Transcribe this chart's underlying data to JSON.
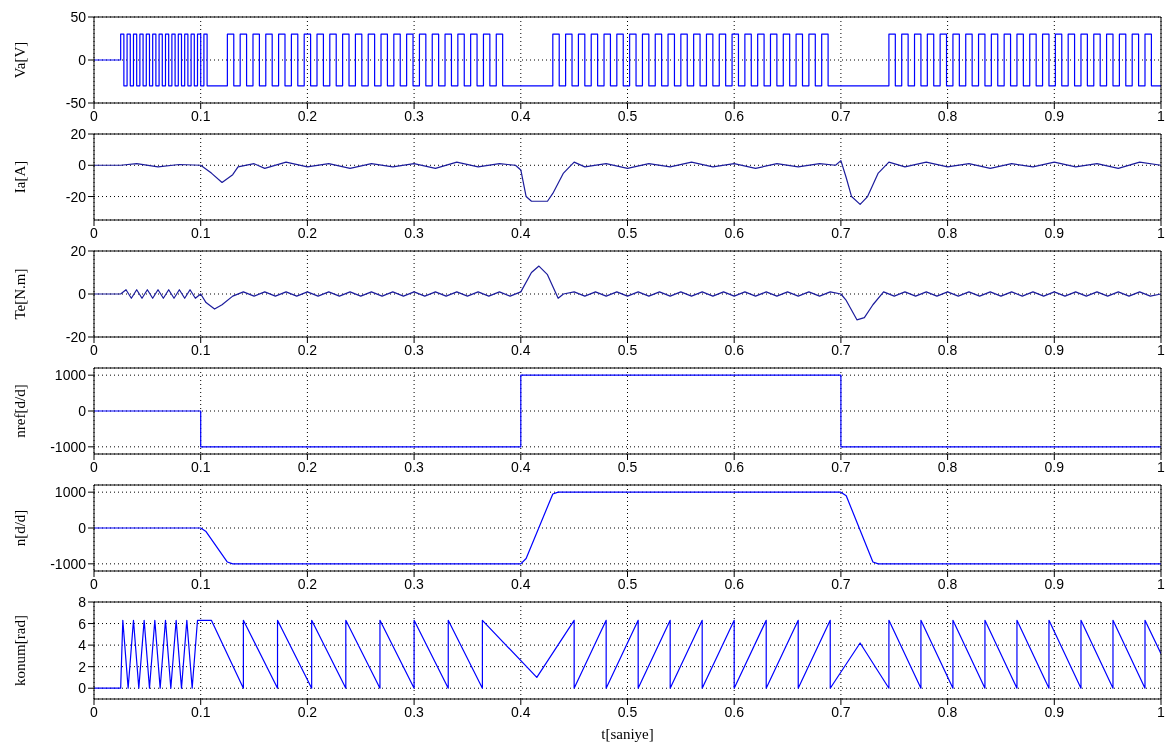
{
  "chart_data": [
    {
      "type": "step",
      "ylabel": "Va[V]",
      "xlim": [
        0,
        1
      ],
      "xticks": [
        0,
        0.1,
        0.2,
        0.3,
        0.4,
        0.5,
        0.6,
        0.7,
        0.8,
        0.9,
        1
      ],
      "ylim": [
        -50,
        50
      ],
      "yticks": [
        -50,
        0,
        50
      ],
      "grid": true,
      "series": [
        {
          "color": "#0000ff",
          "x": [
            0,
            0.025,
            0.028,
            0.031,
            0.034,
            0.037,
            0.04,
            0.043,
            0.046,
            0.049,
            0.052,
            0.055,
            0.058,
            0.061,
            0.064,
            0.067,
            0.07,
            0.073,
            0.076,
            0.079,
            0.082,
            0.085,
            0.088,
            0.091,
            0.094,
            0.097,
            0.1,
            0.103,
            0.106,
            0.125,
            0.131,
            0.137,
            0.143,
            0.149,
            0.155,
            0.161,
            0.167,
            0.173,
            0.179,
            0.185,
            0.191,
            0.197,
            0.203,
            0.209,
            0.215,
            0.221,
            0.227,
            0.233,
            0.239,
            0.245,
            0.251,
            0.257,
            0.263,
            0.269,
            0.275,
            0.281,
            0.287,
            0.293,
            0.299,
            0.305,
            0.311,
            0.317,
            0.323,
            0.329,
            0.335,
            0.341,
            0.347,
            0.353,
            0.359,
            0.365,
            0.371,
            0.377,
            0.383,
            0.43,
            0.436,
            0.442,
            0.448,
            0.454,
            0.46,
            0.466,
            0.472,
            0.478,
            0.484,
            0.49,
            0.496,
            0.502,
            0.508,
            0.514,
            0.52,
            0.526,
            0.532,
            0.538,
            0.544,
            0.55,
            0.556,
            0.562,
            0.568,
            0.574,
            0.58,
            0.586,
            0.592,
            0.598,
            0.604,
            0.61,
            0.616,
            0.622,
            0.628,
            0.634,
            0.64,
            0.646,
            0.652,
            0.658,
            0.664,
            0.67,
            0.676,
            0.682,
            0.688,
            0.745,
            0.751,
            0.757,
            0.763,
            0.769,
            0.775,
            0.781,
            0.787,
            0.793,
            0.799,
            0.805,
            0.811,
            0.817,
            0.823,
            0.829,
            0.835,
            0.841,
            0.847,
            0.853,
            0.859,
            0.865,
            0.871,
            0.877,
            0.883,
            0.889,
            0.895,
            0.901,
            0.907,
            0.913,
            0.919,
            0.925,
            0.931,
            0.937,
            0.943,
            0.949,
            0.955,
            0.961,
            0.967,
            0.973,
            0.979,
            0.985,
            0.991,
            1
          ],
          "values": [
            0,
            30,
            -30,
            30,
            -30,
            30,
            -30,
            30,
            -30,
            30,
            -30,
            30,
            -30,
            30,
            -30,
            30,
            -30,
            30,
            -30,
            30,
            -30,
            30,
            -30,
            30,
            -30,
            30,
            -30,
            30,
            -30,
            30,
            -30,
            30,
            -30,
            30,
            -30,
            30,
            -30,
            30,
            -30,
            30,
            -30,
            30,
            -30,
            30,
            -30,
            30,
            -30,
            30,
            -30,
            30,
            -30,
            30,
            -30,
            30,
            -30,
            30,
            -30,
            30,
            -30,
            30,
            -30,
            30,
            -30,
            30,
            -30,
            30,
            -30,
            30,
            -30,
            30,
            -30,
            30,
            -30,
            30,
            -30,
            30,
            -30,
            30,
            -30,
            30,
            -30,
            30,
            -30,
            30,
            -30,
            30,
            -30,
            30,
            -30,
            30,
            -30,
            30,
            -30,
            30,
            -30,
            30,
            -30,
            30,
            -30,
            30,
            -30,
            30,
            -30,
            30,
            -30,
            30,
            -30,
            30,
            -30,
            30,
            -30,
            30,
            -30,
            30,
            -30,
            30,
            -30,
            30,
            -30,
            30,
            -30,
            30,
            -30,
            30,
            -30,
            30,
            -30,
            30,
            -30,
            30,
            -30,
            30,
            -30,
            30,
            -30,
            30,
            -30,
            30,
            -30,
            30,
            -30,
            30,
            -30,
            30,
            -30,
            30,
            -30,
            30,
            -30,
            30,
            -30,
            30,
            -30,
            30,
            -30,
            30,
            -30,
            30,
            -30,
            -30
          ]
        }
      ]
    },
    {
      "type": "line",
      "ylabel": "Ia[A]",
      "xlim": [
        0,
        1
      ],
      "xticks": [
        0,
        0.1,
        0.2,
        0.3,
        0.4,
        0.5,
        0.6,
        0.7,
        0.8,
        0.9,
        1
      ],
      "ylim": [
        -35,
        20
      ],
      "yticks": [
        -20,
        0,
        20
      ],
      "grid": true,
      "series": [
        {
          "color": "#1c1c9c",
          "x": [
            0,
            0.025,
            0.04,
            0.06,
            0.08,
            0.1,
            0.11,
            0.12,
            0.13,
            0.135,
            0.15,
            0.16,
            0.18,
            0.2,
            0.22,
            0.24,
            0.26,
            0.28,
            0.3,
            0.32,
            0.34,
            0.36,
            0.38,
            0.395,
            0.4,
            0.405,
            0.41,
            0.425,
            0.43,
            0.44,
            0.45,
            0.46,
            0.48,
            0.5,
            0.52,
            0.54,
            0.56,
            0.58,
            0.6,
            0.62,
            0.64,
            0.66,
            0.68,
            0.695,
            0.7,
            0.705,
            0.71,
            0.718,
            0.725,
            0.735,
            0.745,
            0.76,
            0.78,
            0.8,
            0.82,
            0.84,
            0.86,
            0.88,
            0.9,
            0.92,
            0.94,
            0.96,
            0.98,
            1
          ],
          "values": [
            0,
            0,
            1,
            -1,
            0.5,
            0,
            -5,
            -11,
            -6,
            -1,
            1,
            -2,
            2,
            -1,
            1,
            -2,
            1,
            -1,
            1,
            -2,
            2,
            -1,
            1,
            0,
            -3,
            -20,
            -23,
            -23,
            -18,
            -5,
            2,
            -1,
            1,
            -2,
            1,
            -1,
            2,
            -1,
            1,
            -2,
            1,
            -1,
            1,
            0,
            3,
            -8,
            -20,
            -25,
            -20,
            -5,
            2,
            -1,
            2,
            -1,
            1,
            -2,
            1,
            -1,
            2,
            -1,
            1,
            -2,
            2,
            0
          ]
        }
      ]
    },
    {
      "type": "line",
      "ylabel": "Te[N.m]",
      "xlim": [
        0,
        1
      ],
      "xticks": [
        0,
        0.1,
        0.2,
        0.3,
        0.4,
        0.5,
        0.6,
        0.7,
        0.8,
        0.9,
        1
      ],
      "ylim": [
        -20,
        20
      ],
      "yticks": [
        -20,
        0,
        20
      ],
      "grid": true,
      "series": [
        {
          "color": "#1c1c9c",
          "x": [
            0,
            0.025,
            0.03,
            0.035,
            0.04,
            0.045,
            0.05,
            0.055,
            0.06,
            0.065,
            0.07,
            0.075,
            0.08,
            0.085,
            0.09,
            0.095,
            0.1,
            0.105,
            0.113,
            0.12,
            0.13,
            0.14,
            0.15,
            0.16,
            0.17,
            0.18,
            0.19,
            0.2,
            0.21,
            0.22,
            0.23,
            0.24,
            0.25,
            0.26,
            0.27,
            0.28,
            0.29,
            0.3,
            0.31,
            0.32,
            0.33,
            0.34,
            0.35,
            0.36,
            0.37,
            0.38,
            0.39,
            0.4,
            0.41,
            0.417,
            0.425,
            0.435,
            0.44,
            0.45,
            0.46,
            0.47,
            0.48,
            0.49,
            0.5,
            0.51,
            0.52,
            0.53,
            0.54,
            0.55,
            0.56,
            0.57,
            0.58,
            0.59,
            0.6,
            0.61,
            0.62,
            0.63,
            0.64,
            0.65,
            0.66,
            0.67,
            0.68,
            0.69,
            0.7,
            0.705,
            0.715,
            0.722,
            0.73,
            0.74,
            0.75,
            0.76,
            0.77,
            0.78,
            0.79,
            0.8,
            0.81,
            0.82,
            0.83,
            0.84,
            0.85,
            0.86,
            0.87,
            0.88,
            0.89,
            0.9,
            0.91,
            0.92,
            0.93,
            0.94,
            0.95,
            0.96,
            0.97,
            0.98,
            0.99,
            1
          ],
          "values": [
            0,
            0,
            2,
            -2,
            2,
            -2,
            2,
            -2,
            2,
            -2,
            2,
            -2,
            2,
            -2,
            2,
            -2,
            0,
            -4,
            -7,
            -5,
            -1,
            1,
            -1,
            1,
            -1,
            1,
            -1,
            1,
            -1,
            1,
            -1,
            1,
            -1,
            1,
            -1,
            1,
            -1,
            1,
            -1,
            1,
            -1,
            1,
            -1,
            1,
            -1,
            1,
            -1,
            1,
            10,
            13,
            9,
            -2,
            0,
            1,
            -1,
            1,
            -1,
            1,
            -1,
            1,
            -1,
            1,
            -1,
            1,
            -1,
            1,
            -1,
            1,
            -1,
            1,
            -1,
            1,
            -1,
            1,
            -1,
            1,
            -1,
            1,
            0,
            -3,
            -12,
            -11,
            -5,
            1,
            -1,
            1,
            -1,
            1,
            -1,
            1,
            -1,
            1,
            -1,
            1,
            -1,
            1,
            -1,
            1,
            -1,
            1,
            -1,
            1,
            -1,
            1,
            -1,
            1,
            -1,
            1,
            -1,
            0
          ]
        }
      ]
    },
    {
      "type": "step",
      "ylabel": "nref[d/d]",
      "xlim": [
        0,
        1
      ],
      "xticks": [
        0,
        0.1,
        0.2,
        0.3,
        0.4,
        0.5,
        0.6,
        0.7,
        0.8,
        0.9,
        1
      ],
      "ylim": [
        -1200,
        1200
      ],
      "yticks": [
        -1000,
        0,
        1000
      ],
      "grid": true,
      "series": [
        {
          "color": "#0000ff",
          "x": [
            0,
            0.1,
            0.4,
            0.7,
            1
          ],
          "values": [
            0,
            -1000,
            1000,
            -1000,
            -1000
          ]
        }
      ]
    },
    {
      "type": "line",
      "ylabel": "n[d/d]",
      "xlim": [
        0,
        1
      ],
      "xticks": [
        0,
        0.1,
        0.2,
        0.3,
        0.4,
        0.5,
        0.6,
        0.7,
        0.8,
        0.9,
        1
      ],
      "ylim": [
        -1200,
        1200
      ],
      "yticks": [
        -1000,
        0,
        1000
      ],
      "grid": true,
      "series": [
        {
          "color": "#0000ff",
          "x": [
            0,
            0.1,
            0.105,
            0.125,
            0.13,
            0.4,
            0.405,
            0.43,
            0.435,
            0.7,
            0.705,
            0.73,
            0.735,
            1
          ],
          "values": [
            0,
            0,
            -100,
            -950,
            -1000,
            -1000,
            -850,
            950,
            1000,
            1000,
            900,
            -950,
            -1000,
            -1000
          ]
        }
      ]
    },
    {
      "type": "line",
      "ylabel": "konum[rad]",
      "xlabel": "t[saniye]",
      "xlim": [
        0,
        1
      ],
      "xticks": [
        0,
        0.1,
        0.2,
        0.3,
        0.4,
        0.5,
        0.6,
        0.7,
        0.8,
        0.9,
        1
      ],
      "ylim": [
        -1,
        8
      ],
      "yticks": [
        0,
        2,
        4,
        6,
        8
      ],
      "grid": true,
      "series": [
        {
          "color": "#0000ff",
          "x": [
            0,
            0.025,
            0.027,
            0.032,
            0.037,
            0.042,
            0.047,
            0.052,
            0.057,
            0.062,
            0.067,
            0.072,
            0.077,
            0.082,
            0.087,
            0.092,
            0.097,
            0.11,
            0.14,
            0.14,
            0.172,
            0.172,
            0.204,
            0.204,
            0.236,
            0.236,
            0.268,
            0.268,
            0.3,
            0.3,
            0.332,
            0.332,
            0.364,
            0.364,
            0.415,
            0.45,
            0.45,
            0.48,
            0.48,
            0.51,
            0.51,
            0.54,
            0.54,
            0.57,
            0.57,
            0.6,
            0.6,
            0.63,
            0.63,
            0.66,
            0.66,
            0.69,
            0.69,
            0.718,
            0.745,
            0.745,
            0.775,
            0.775,
            0.805,
            0.805,
            0.835,
            0.835,
            0.865,
            0.865,
            0.895,
            0.895,
            0.925,
            0.925,
            0.955,
            0.955,
            0.985,
            0.985,
            1
          ],
          "values": [
            0,
            0,
            6.3,
            0,
            6.3,
            0,
            6.3,
            0,
            6.3,
            0,
            6.3,
            0,
            6.3,
            0,
            6.3,
            0,
            6.3,
            6.3,
            0,
            6.3,
            0,
            6.3,
            0,
            6.3,
            0,
            6.3,
            0,
            6.3,
            0,
            6.3,
            0,
            6.3,
            0,
            6.3,
            1,
            6.3,
            0,
            6.3,
            0,
            6.3,
            0,
            6.3,
            0,
            6.3,
            0,
            6.3,
            0,
            6.3,
            0,
            6.3,
            0,
            6.3,
            0,
            4.2,
            0,
            6.3,
            0,
            6.3,
            0,
            6.3,
            0,
            6.3,
            0,
            6.3,
            0,
            6.3,
            0,
            6.3,
            0,
            6.3,
            0,
            6.3,
            3.2
          ]
        }
      ]
    }
  ]
}
